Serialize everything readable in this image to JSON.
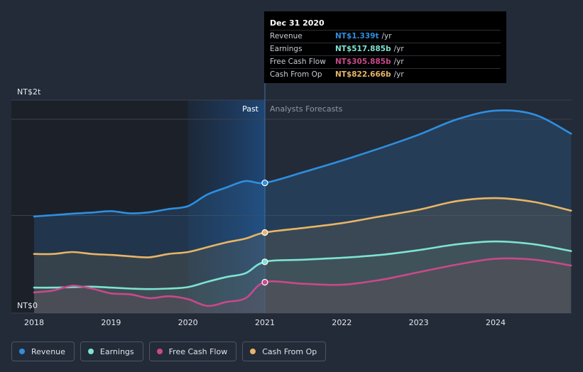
{
  "chart_data": {
    "type": "area",
    "x_unit": "year",
    "xlim": [
      2018,
      2024.98
    ],
    "ylim": [
      0,
      2
    ],
    "y_unit": "NT$ trillion",
    "y_labels": [
      {
        "value": 2,
        "label": "NT$2t"
      },
      {
        "value": 0,
        "label": "NT$0"
      }
    ],
    "x_ticks": [
      {
        "value": 2018,
        "label": "2018"
      },
      {
        "value": 2019,
        "label": "2019"
      },
      {
        "value": 2020,
        "label": "2020"
      },
      {
        "value": 2021,
        "label": "2021"
      },
      {
        "value": 2022,
        "label": "2022"
      },
      {
        "value": 2023,
        "label": "2023"
      },
      {
        "value": 2024,
        "label": "2024"
      }
    ],
    "split_x": 2021,
    "highlight_start_x": 2020,
    "past_label": "Past",
    "forecast_label": "Analysts Forecasts",
    "series": [
      {
        "key": "revenue",
        "name": "Revenue",
        "color": "#2e8fe0",
        "x": [
          2018,
          2018.25,
          2018.5,
          2018.75,
          2019,
          2019.25,
          2019.5,
          2019.75,
          2020,
          2020.25,
          2020.5,
          2020.75,
          2021,
          2021.5,
          2022,
          2022.5,
          2023,
          2023.5,
          2024,
          2024.5,
          2024.98
        ],
        "values": [
          0.989,
          1.004,
          1.019,
          1.03,
          1.045,
          1.022,
          1.034,
          1.067,
          1.097,
          1.217,
          1.291,
          1.358,
          1.339,
          1.45,
          1.57,
          1.7,
          1.84,
          2.0,
          2.09,
          2.05,
          1.85
        ]
      },
      {
        "key": "earnings",
        "name": "Earnings",
        "color": "#7ee3d2",
        "x": [
          2018,
          2018.25,
          2018.5,
          2018.75,
          2019,
          2019.25,
          2019.5,
          2019.75,
          2020,
          2020.25,
          2020.5,
          2020.75,
          2021,
          2021.5,
          2022,
          2022.5,
          2023,
          2023.5,
          2024,
          2024.5,
          2024.98
        ],
        "values": [
          0.25,
          0.25,
          0.255,
          0.26,
          0.25,
          0.24,
          0.235,
          0.24,
          0.255,
          0.31,
          0.36,
          0.4,
          0.518,
          0.54,
          0.56,
          0.59,
          0.64,
          0.7,
          0.73,
          0.7,
          0.63
        ]
      },
      {
        "key": "free_cash_flow",
        "name": "Free Cash Flow",
        "color": "#c9498a",
        "x": [
          2018,
          2018.25,
          2018.5,
          2018.75,
          2019,
          2019.25,
          2019.5,
          2019.75,
          2020,
          2020.25,
          2020.5,
          2020.75,
          2021,
          2021.5,
          2022,
          2022.5,
          2023,
          2023.5,
          2024,
          2024.5,
          2024.98
        ],
        "values": [
          0.2,
          0.22,
          0.27,
          0.24,
          0.19,
          0.18,
          0.14,
          0.16,
          0.13,
          0.06,
          0.1,
          0.14,
          0.306,
          0.29,
          0.28,
          0.33,
          0.41,
          0.49,
          0.55,
          0.54,
          0.48
        ]
      },
      {
        "key": "cash_from_op",
        "name": "Cash From Op",
        "color": "#e8b566",
        "x": [
          2018,
          2018.25,
          2018.5,
          2018.75,
          2019,
          2019.25,
          2019.5,
          2019.75,
          2020,
          2020.25,
          2020.5,
          2020.75,
          2021,
          2021.5,
          2022,
          2022.5,
          2023,
          2023.5,
          2024,
          2024.5,
          2024.98
        ],
        "values": [
          0.6,
          0.6,
          0.62,
          0.6,
          0.59,
          0.575,
          0.565,
          0.6,
          0.62,
          0.67,
          0.72,
          0.76,
          0.823,
          0.87,
          0.92,
          0.99,
          1.06,
          1.15,
          1.18,
          1.14,
          1.05
        ]
      }
    ]
  },
  "tooltip": {
    "date": "Dec 31 2020",
    "rows": [
      {
        "label": "Revenue",
        "value": "NT$1.339t",
        "unit": "/yr",
        "color": "#2e8fe0"
      },
      {
        "label": "Earnings",
        "value": "NT$517.885b",
        "unit": "/yr",
        "color": "#7ee3d2"
      },
      {
        "label": "Free Cash Flow",
        "value": "NT$305.885b",
        "unit": "/yr",
        "color": "#c9498a"
      },
      {
        "label": "Cash From Op",
        "value": "NT$822.666b",
        "unit": "/yr",
        "color": "#e8b566"
      }
    ]
  },
  "legend": [
    {
      "label": "Revenue",
      "color": "#2e8fe0"
    },
    {
      "label": "Earnings",
      "color": "#7ee3d2"
    },
    {
      "label": "Free Cash Flow",
      "color": "#c9498a"
    },
    {
      "label": "Cash From Op",
      "color": "#e8b566"
    }
  ]
}
